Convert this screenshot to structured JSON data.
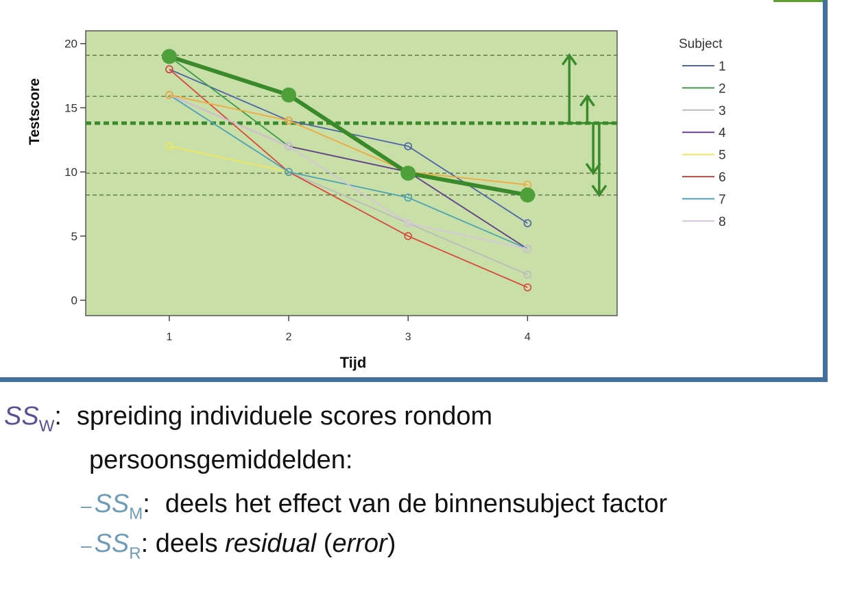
{
  "chart_data": {
    "type": "line",
    "xlabel": "Tijd",
    "ylabel": "Testscore",
    "x": [
      1,
      2,
      3,
      4
    ],
    "xlim": [
      0.3,
      4.75
    ],
    "ylim": [
      -1.2,
      21
    ],
    "xticks": [
      "1",
      "2",
      "3",
      "4"
    ],
    "yticks": [
      0,
      5,
      10,
      15,
      20
    ],
    "legend_title": "Subject",
    "legend_position": "right",
    "plot_background": "#c8dfa8",
    "series": [
      {
        "name": "1",
        "color": "#4e63a8",
        "values": [
          18,
          14,
          12,
          6
        ]
      },
      {
        "name": "2",
        "color": "#3d9a4d",
        "values": [
          19,
          12,
          10,
          4
        ]
      },
      {
        "name": "3",
        "color": "#bbbbbb",
        "values": [
          16,
          10,
          6,
          2
        ]
      },
      {
        "name": "4",
        "color": "#6a3f8e",
        "values": [
          16,
          12,
          10,
          4
        ]
      },
      {
        "name": "5",
        "color": "#f0e65a",
        "values": [
          12,
          10,
          8,
          4
        ]
      },
      {
        "name": "6",
        "color": "#d9473a",
        "values": [
          18,
          10,
          5,
          1
        ]
      },
      {
        "name": "7",
        "color": "#4aa3b8",
        "values": [
          16,
          10,
          8,
          4
        ]
      },
      {
        "name": "8",
        "color": "#d6c4de",
        "values": [
          16,
          12,
          6,
          4
        ]
      },
      {
        "name": "",
        "color": "#f2a93b",
        "values": [
          16,
          14,
          10,
          9
        ]
      }
    ],
    "highlight_series": {
      "color": "#3a8a2b",
      "values": [
        19,
        16,
        9.9,
        8.2
      ]
    },
    "grand_mean": 13.8,
    "reference_lines": [
      19.1,
      15.9,
      9.9,
      8.2
    ],
    "arrows": [
      {
        "x": 4.35,
        "from": 13.8,
        "to": 19.1
      },
      {
        "x": 4.5,
        "from": 13.8,
        "to": 15.9
      },
      {
        "x": 4.55,
        "from": 13.8,
        "to": 9.9
      },
      {
        "x": 4.6,
        "from": 13.8,
        "to": 8.2
      }
    ]
  },
  "caption": {
    "ssw_base": "SS",
    "ssw_sub": "W",
    "ssw_colon": ":",
    "line1_text": "spreiding individuele scores rondom",
    "line2_text": "persoonsgemiddelden:",
    "bullet": "–",
    "ssm_base": "SS",
    "ssm_sub": "M",
    "ssm_colon": ":",
    "line3_text": "deels het effect van de binnensubject factor",
    "ssr_base": "SS",
    "ssr_sub": "R",
    "line4_prefix": ": deels ",
    "line4_italic1": "residual",
    "line4_mid": " (",
    "line4_italic2": "error",
    "line4_end": ")"
  }
}
